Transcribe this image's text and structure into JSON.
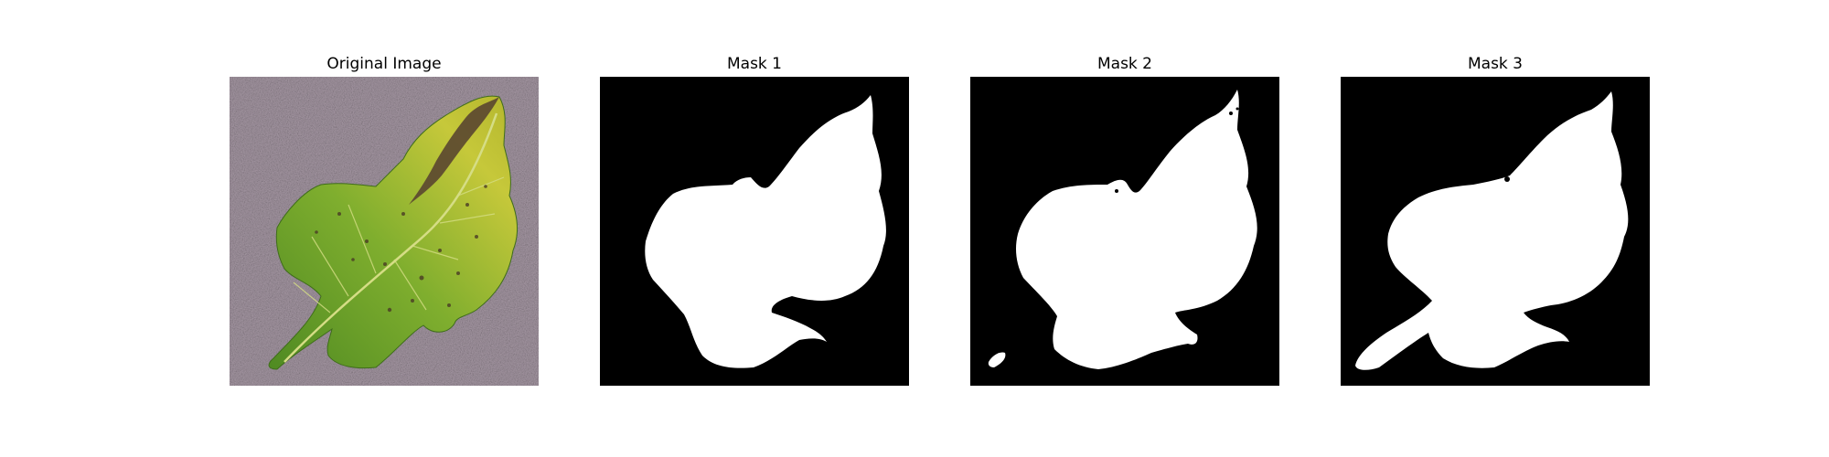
{
  "panels": [
    {
      "title": "Original Image",
      "kind": "photo",
      "subject": "leaf"
    },
    {
      "title": "Mask 1",
      "kind": "mask"
    },
    {
      "title": "Mask 2",
      "kind": "mask"
    },
    {
      "title": "Mask 3",
      "kind": "mask"
    }
  ],
  "colors": {
    "mask_background": "#000000",
    "mask_foreground": "#ffffff",
    "photo_background": "#a89aa6",
    "leaf_green": "#7fae2e",
    "leaf_yellow": "#c6c83a",
    "leaf_dark_green": "#4f8a22",
    "necrosis_brown": "#5a4630",
    "vein": "#d5dd85"
  }
}
